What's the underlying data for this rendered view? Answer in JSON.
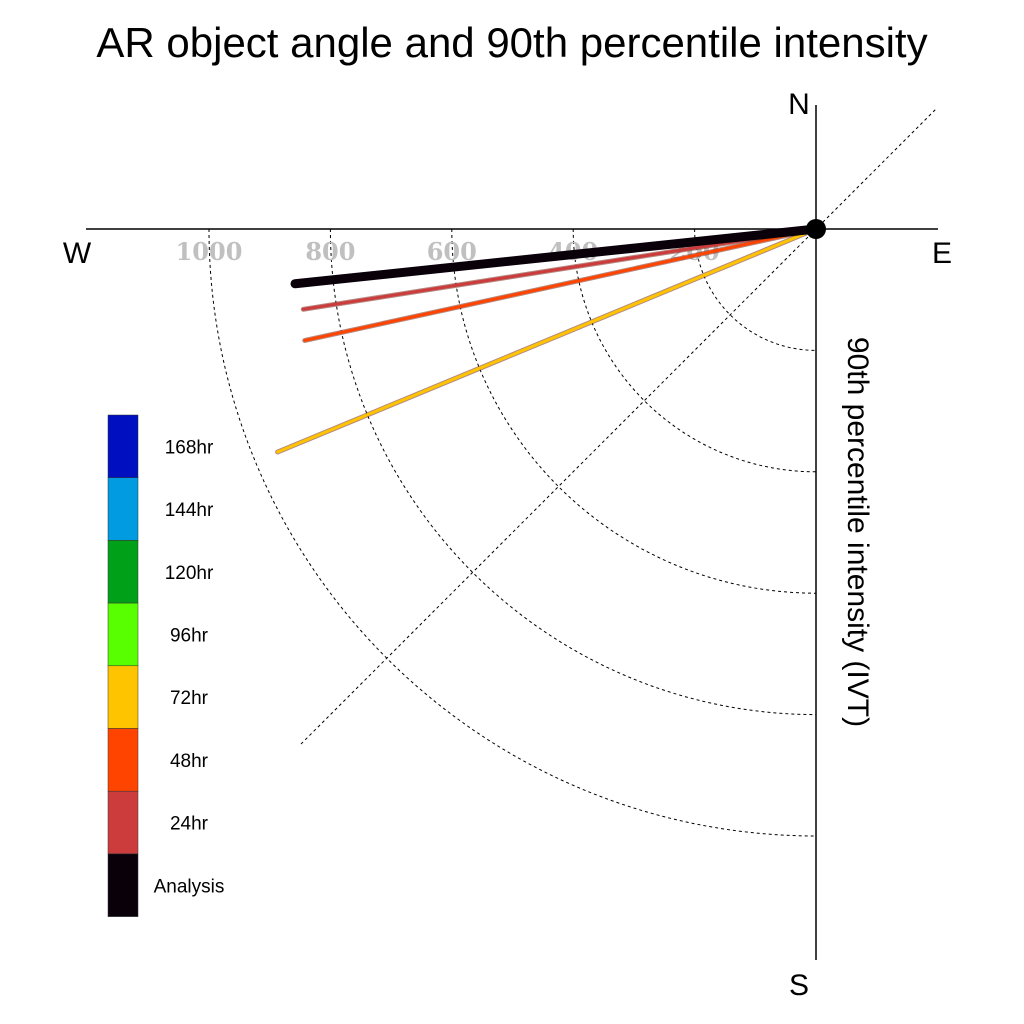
{
  "chart_data": {
    "type": "polar-vector",
    "title": "AR object angle and 90th percentile intensity",
    "ylabel": "90th percentile intensity (IVT)",
    "compass": {
      "north": "N",
      "south": "S",
      "east": "E",
      "west": "W"
    },
    "radial_ticks": [
      200,
      400,
      600,
      800,
      1000
    ],
    "radial_tick_labels": [
      "200",
      "400",
      "600",
      "800",
      "1000"
    ],
    "rmax": 1200,
    "grid": true,
    "legend": {
      "placement": "left",
      "entries": [
        {
          "label": "168hr",
          "color": "#0010c0"
        },
        {
          "label": "144hr",
          "color": "#009be0"
        },
        {
          "label": "120hr",
          "color": "#00a018"
        },
        {
          "label": "96hr",
          "color": "#58ff00"
        },
        {
          "label": "72hr",
          "color": "#ffc400"
        },
        {
          "label": "48hr",
          "color": "#ff4400"
        },
        {
          "label": "24hr",
          "color": "#cc3c3c"
        },
        {
          "label": "Analysis",
          "color": "#0a000a"
        }
      ]
    },
    "series": [
      {
        "name": "72hr",
        "angle_deg": 202.5,
        "intensity": 960,
        "color": "#ffc400"
      },
      {
        "name": "48hr",
        "angle_deg": 192.3,
        "intensity": 862,
        "color": "#ff4400"
      },
      {
        "name": "24hr",
        "angle_deg": 188.9,
        "intensity": 855,
        "color": "#cc3c3c"
      },
      {
        "name": "Analysis",
        "angle_deg": 186.0,
        "intensity": 863,
        "color": "#0a000a"
      }
    ]
  }
}
